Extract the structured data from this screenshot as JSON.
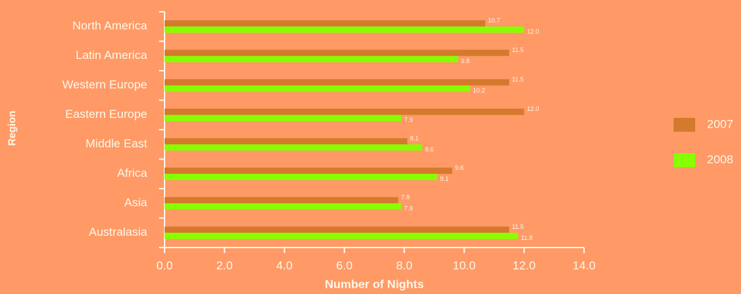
{
  "chart_data": {
    "type": "bar",
    "orientation": "horizontal",
    "xlabel": "Number of Nights",
    "ylabel": "Region",
    "categories": [
      "North America",
      "Latin America",
      "Western Europe",
      "Eastern Europe",
      "Middle East",
      "Africa",
      "Asia",
      "Australasia"
    ],
    "series": [
      {
        "name": "2007",
        "color": "#d47a2c",
        "values": [
          10.7,
          11.5,
          11.5,
          12.0,
          8.1,
          9.6,
          7.8,
          11.5
        ],
        "value_labels": [
          "10.7",
          "11.5",
          "11.5",
          "12.0",
          "8.1",
          "9.6",
          "7.8",
          "11.5"
        ]
      },
      {
        "name": "2008",
        "color": "#88ff00",
        "values": [
          12.0,
          9.8,
          10.2,
          7.9,
          8.6,
          9.1,
          7.9,
          11.8
        ],
        "value_labels": [
          "12.0",
          "9.8",
          "10.2",
          "7.9",
          "8.6",
          "9.1",
          "7.9",
          "11.8"
        ]
      }
    ],
    "xlim": [
      0,
      14
    ],
    "xticks": [
      {
        "value": 0,
        "label": "0.0"
      },
      {
        "value": 2,
        "label": "2.0"
      },
      {
        "value": 4,
        "label": "4.0"
      },
      {
        "value": 6,
        "label": "6.0"
      },
      {
        "value": 8,
        "label": "8.0"
      },
      {
        "value": 10,
        "label": "10.0"
      },
      {
        "value": 12,
        "label": "12.0"
      },
      {
        "value": 14,
        "label": "14.0"
      }
    ],
    "legend": "right"
  }
}
